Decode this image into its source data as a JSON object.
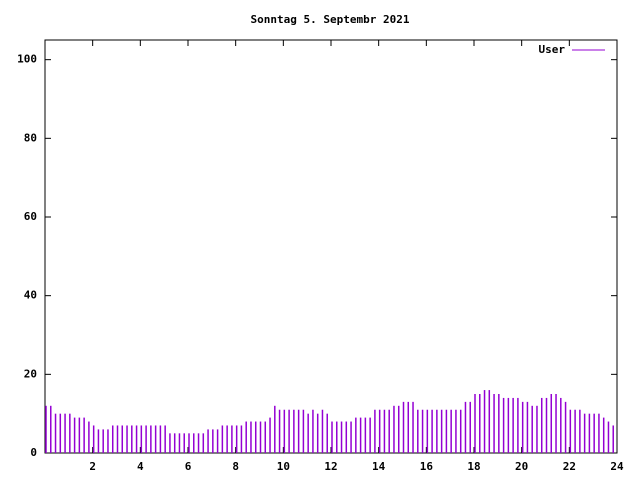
{
  "chart_data": {
    "type": "impulse",
    "title": "Sonntag 5. Septembr 2021",
    "x": [
      0,
      0.2,
      0.4,
      0.6,
      0.8,
      1,
      1.2,
      1.4,
      1.6,
      1.8,
      2,
      2.2,
      2.4,
      2.6,
      2.8,
      3,
      3.2,
      3.4,
      3.6,
      3.8,
      4,
      4.2,
      4.4,
      4.6,
      4.8,
      5,
      5.2,
      5.4,
      5.6,
      5.8,
      6,
      6.2,
      6.4,
      6.6,
      6.8,
      7,
      7.2,
      7.4,
      7.6,
      7.8,
      8,
      8.2,
      8.4,
      8.6,
      8.8,
      9,
      9.2,
      9.4,
      9.6,
      9.8,
      10,
      10.2,
      10.4,
      10.6,
      10.8,
      11,
      11.2,
      11.4,
      11.6,
      11.8,
      12,
      12.2,
      12.4,
      12.6,
      12.8,
      13,
      13.2,
      13.4,
      13.6,
      13.8,
      14,
      14.2,
      14.4,
      14.6,
      14.8,
      15,
      15.2,
      15.4,
      15.6,
      15.8,
      16,
      16.2,
      16.4,
      16.6,
      16.8,
      17,
      17.2,
      17.4,
      17.6,
      17.8,
      18,
      18.2,
      18.4,
      18.6,
      18.8,
      19,
      19.2,
      19.4,
      19.6,
      19.8,
      20,
      20.2,
      20.4,
      20.6,
      20.8,
      21,
      21.2,
      21.4,
      21.6,
      21.8,
      22,
      22.2,
      22.4,
      22.6,
      22.8,
      23,
      23.2,
      23.4,
      23.6,
      23.8
    ],
    "series": [
      {
        "name": "User",
        "color": "#9400d3",
        "values": [
          12,
          12,
          10,
          10,
          10,
          10,
          9,
          9,
          9,
          8,
          7,
          6,
          6,
          6,
          7,
          7,
          7,
          7,
          7,
          7,
          7,
          7,
          7,
          7,
          7,
          7,
          5,
          5,
          5,
          5,
          5,
          5,
          5,
          5,
          6,
          6,
          6,
          7,
          7,
          7,
          7,
          7,
          8,
          8,
          8,
          8,
          8,
          9,
          12,
          11,
          11,
          11,
          11,
          11,
          11,
          10,
          11,
          10,
          11,
          10,
          8,
          8,
          8,
          8,
          8,
          9,
          9,
          9,
          9,
          11,
          11,
          11,
          11,
          12,
          12,
          13,
          13,
          13,
          11,
          11,
          11,
          11,
          11,
          11,
          11,
          11,
          11,
          11,
          13,
          13,
          15,
          15,
          16,
          16,
          15,
          15,
          14,
          14,
          14,
          14,
          13,
          13,
          12,
          12,
          14,
          14,
          15,
          15,
          14,
          13,
          11,
          11,
          11,
          10,
          10,
          10,
          10,
          9,
          8,
          7
        ]
      }
    ],
    "xlim": [
      0,
      24
    ],
    "xticks": [
      2,
      4,
      6,
      8,
      10,
      12,
      14,
      16,
      18,
      20,
      22,
      24
    ],
    "ylim": [
      0,
      105
    ],
    "yticks": [
      0,
      20,
      40,
      60,
      80,
      100
    ],
    "legend": "top-right"
  }
}
